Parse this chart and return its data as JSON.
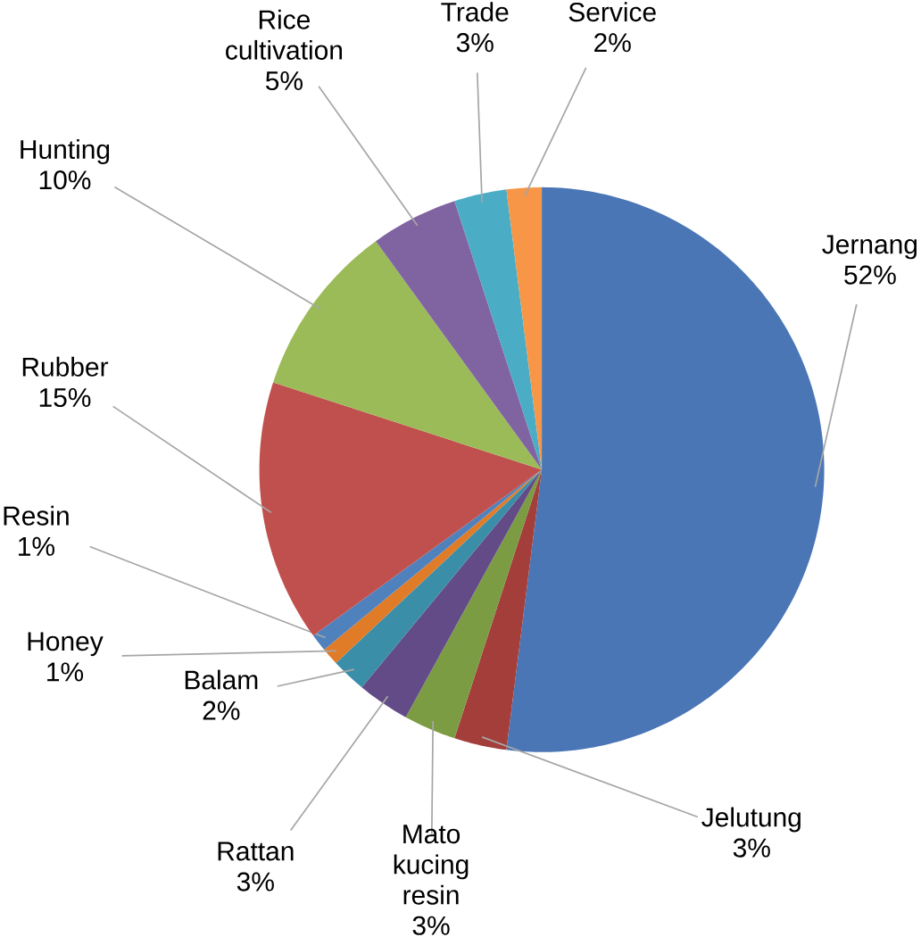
{
  "chart_data": {
    "type": "pie",
    "categories": [
      "Jernang",
      "Jelutung",
      "Mato kucing resin",
      "Rattan",
      "Balam",
      "Honey",
      "Resin",
      "Rubber",
      "Hunting",
      "Rice cultivation",
      "Trade",
      "Service"
    ],
    "values": [
      52,
      3,
      3,
      3,
      2,
      1,
      1,
      15,
      10,
      5,
      3,
      2
    ],
    "value_labels": [
      "52%",
      "3%",
      "3%",
      "3%",
      "2%",
      "1%",
      "1%",
      "15%",
      "10%",
      "5%",
      "3%",
      "2%"
    ],
    "colors": [
      "#4a76b5",
      "#a33e3b",
      "#7b9c42",
      "#634b87",
      "#3a8ea8",
      "#e07b28",
      "#4f81bd",
      "#c0504d",
      "#9bbb59",
      "#8064a2",
      "#4bacc6",
      "#f79646"
    ]
  }
}
